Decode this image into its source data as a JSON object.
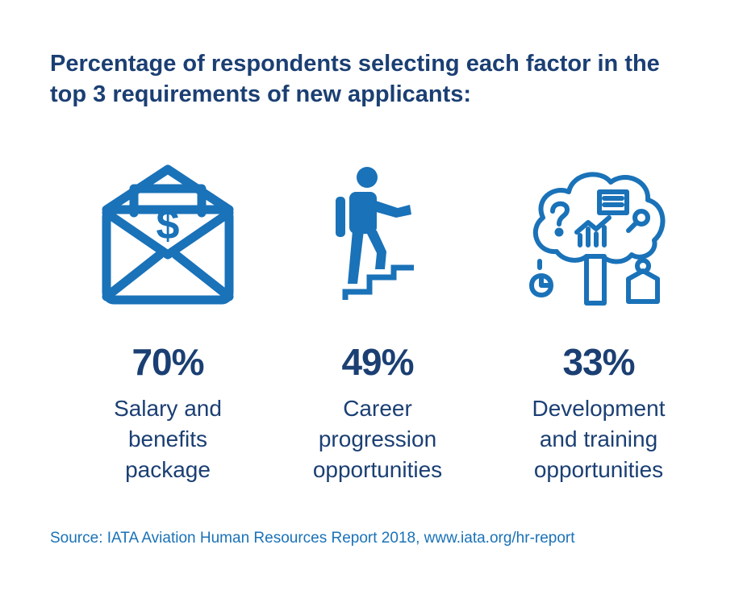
{
  "title": "Percentage of respondents selecting each factor in the top 3 requirements of new applicants:",
  "colors": {
    "heading": "#1b3f73",
    "icon": "#1a72b8",
    "source": "#1a72b8"
  },
  "chart_data": {
    "type": "table",
    "title": "Percentage of respondents selecting each factor in the top 3 requirements of new applicants:",
    "items": [
      {
        "value_label": "70%",
        "value": 70,
        "label": "Salary and\nbenefits\npackage",
        "icon": "envelope-dollar-icon"
      },
      {
        "value_label": "49%",
        "value": 49,
        "label": "Career\nprogression\nopportunities",
        "icon": "person-climbing-stairs-icon"
      },
      {
        "value_label": "33%",
        "value": 33,
        "label": "Development\nand training\nopportunities",
        "icon": "tree-ideas-icon"
      }
    ]
  },
  "source": "Source: IATA Aviation Human Resources Report 2018, www.iata.org/hr-report"
}
